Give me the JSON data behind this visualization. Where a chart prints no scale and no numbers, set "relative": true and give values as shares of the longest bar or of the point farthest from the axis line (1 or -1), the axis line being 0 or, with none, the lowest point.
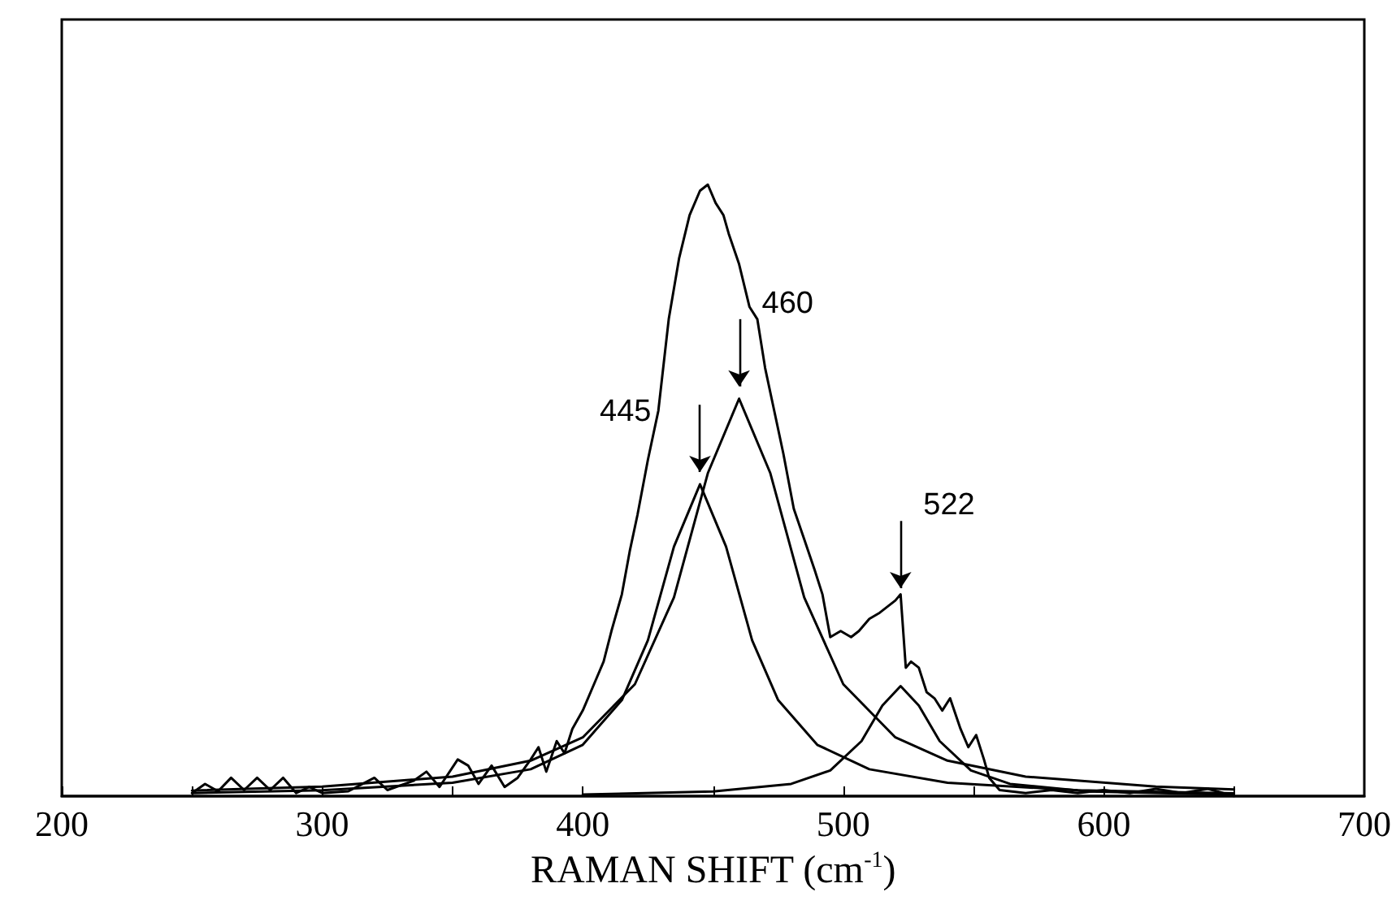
{
  "chart_data": {
    "type": "line",
    "relative": true,
    "xlabel": "RAMAN SHIFT (cm$^{-1}$)",
    "xlim": [
      200,
      700
    ],
    "xticks": [
      200,
      {
        "value": 250,
        "label": null
      },
      300,
      {
        "value": 350,
        "label": null
      },
      400,
      {
        "value": 450,
        "label": null
      },
      500,
      {
        "value": 550,
        "label": null
      },
      600,
      {
        "value": 650,
        "label": null
      },
      700
    ],
    "grid": false,
    "marker": "none",
    "line_style": "solid",
    "annotations": [
      {
        "text": "445",
        "x": 445,
        "y": 0.52
      },
      {
        "text": "460",
        "x": 460,
        "y": 0.66
      },
      {
        "text": "522",
        "x": 522,
        "y": 0.33
      }
    ],
    "series": [
      {
        "color": "#000000",
        "x": [
          250,
          255,
          260,
          265,
          270,
          275,
          280,
          285,
          290,
          295,
          300,
          310,
          320,
          325,
          335,
          340,
          345,
          352,
          356,
          360,
          365,
          370,
          375,
          380,
          383,
          386,
          390,
          393,
          396,
          400,
          405,
          408,
          411,
          415,
          418,
          421,
          425,
          429,
          433,
          437,
          441,
          445,
          448,
          451,
          454,
          456,
          460,
          464,
          467,
          470,
          473,
          477,
          481,
          485,
          489,
          492,
          495,
          499,
          503,
          506,
          510,
          514,
          517,
          520,
          522,
          524,
          526,
          529,
          532,
          535,
          538,
          541,
          545,
          548,
          551,
          554,
          556,
          560,
          570,
          580,
          590,
          600,
          610,
          620,
          630,
          640,
          650
        ],
        "values": [
          0.005,
          0.02,
          0.008,
          0.03,
          0.01,
          0.03,
          0.01,
          0.03,
          0.005,
          0.015,
          0.005,
          0.008,
          0.03,
          0.01,
          0.025,
          0.04,
          0.015,
          0.06,
          0.05,
          0.02,
          0.05,
          0.015,
          0.03,
          0.06,
          0.08,
          0.04,
          0.09,
          0.07,
          0.11,
          0.14,
          0.19,
          0.22,
          0.27,
          0.33,
          0.4,
          0.46,
          0.55,
          0.63,
          0.78,
          0.88,
          0.95,
          0.99,
          1.0,
          0.97,
          0.95,
          0.92,
          0.87,
          0.8,
          0.78,
          0.7,
          0.64,
          0.56,
          0.47,
          0.42,
          0.37,
          0.33,
          0.26,
          0.27,
          0.26,
          0.27,
          0.29,
          0.3,
          0.31,
          0.32,
          0.33,
          0.21,
          0.22,
          0.21,
          0.17,
          0.16,
          0.14,
          0.16,
          0.11,
          0.08,
          0.1,
          0.06,
          0.03,
          0.01,
          0.005,
          0.01,
          0.005,
          0.01,
          0.005,
          0.012,
          0.005,
          0.012,
          0
        ]
      },
      {
        "color": "#000000",
        "x": [
          250,
          300,
          350,
          380,
          400,
          415,
          425,
          435,
          445,
          455,
          465,
          475,
          490,
          510,
          540,
          590,
          650
        ],
        "values": [
          0.005,
          0.0095,
          0.022,
          0.044,
          0.084,
          0.157,
          0.255,
          0.408,
          0.51,
          0.408,
          0.255,
          0.157,
          0.084,
          0.044,
          0.022,
          0.0095,
          0.0048
        ]
      },
      {
        "color": "#000000",
        "x": [
          250,
          300,
          350,
          380,
          400,
          420,
          435,
          448,
          460,
          472,
          485,
          500,
          520,
          540,
          570,
          620,
          650
        ],
        "values": [
          0.0091,
          0.0155,
          0.032,
          0.058,
          0.096,
          0.183,
          0.325,
          0.528,
          0.65,
          0.528,
          0.325,
          0.183,
          0.096,
          0.058,
          0.032,
          0.0155,
          0.011
        ]
      },
      {
        "color": "#000000",
        "x": [
          400,
          450,
          480,
          495,
          507,
          515,
          522,
          529,
          537,
          549,
          564,
          594,
          650
        ],
        "values": [
          0.0027,
          0.0075,
          0.02,
          0.042,
          0.09,
          0.148,
          0.18,
          0.148,
          0.09,
          0.042,
          0.02,
          0.0075,
          0.0024
        ]
      }
    ]
  }
}
